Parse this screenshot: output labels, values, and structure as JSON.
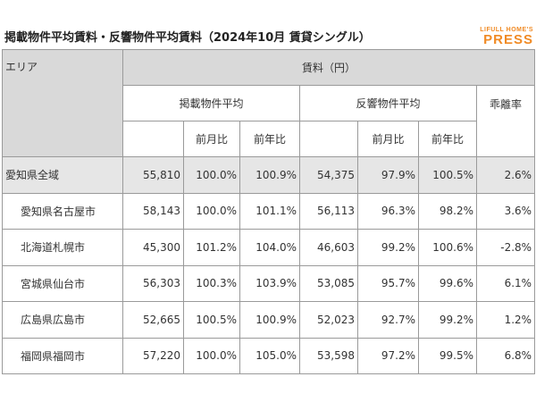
{
  "header": {
    "title": "掲載物件平均賃料・反響物件平均賃料（2024年10月 賃貸シングル）",
    "logo_top": "LIFULL HOME'S",
    "logo_bottom": "PRESS"
  },
  "table": {
    "area": "エリア",
    "rent": "賃料（円）",
    "listed": "掲載物件平均",
    "response": "反響物件平均",
    "gap": "乖離率",
    "mom": "前月比",
    "yoy": "前年比",
    "rows": [
      [
        "愛知県全域",
        "55,810",
        "100.0%",
        "100.9%",
        "54,375",
        "97.9%",
        "100.5%",
        "2.6%"
      ],
      [
        "愛知県名古屋市",
        "58,143",
        "100.0%",
        "101.1%",
        "56,113",
        "96.3%",
        "98.2%",
        "3.6%"
      ],
      [
        "北海道札幌市",
        "45,300",
        "101.2%",
        "104.0%",
        "46,603",
        "99.2%",
        "100.6%",
        "-2.8%"
      ],
      [
        "宮城県仙台市",
        "56,303",
        "100.3%",
        "103.9%",
        "53,085",
        "95.7%",
        "99.6%",
        "6.1%"
      ],
      [
        "広島県広島市",
        "52,665",
        "100.5%",
        "100.9%",
        "52,023",
        "92.7%",
        "99.2%",
        "1.2%"
      ],
      [
        "福岡県福岡市",
        "57,220",
        "100.0%",
        "105.0%",
        "53,598",
        "97.2%",
        "99.5%",
        "6.8%"
      ]
    ]
  }
}
